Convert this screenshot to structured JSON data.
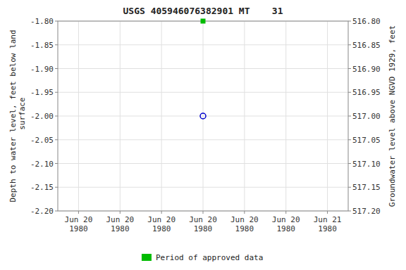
{
  "chart_data": {
    "type": "scatter",
    "title": "USGS 405946076382901 MT    31",
    "y_label": "Depth to water level, feet below land\n surface",
    "y2_label": "Groundwater level above NGVD 1929, feet",
    "categories": [
      "Jun 20\n1980",
      "Jun 20\n1980",
      "Jun 20\n1980",
      "Jun 20\n1980",
      "Jun 20\n1980",
      "Jun 20\n1980",
      "Jun 21\n1980"
    ],
    "series": [
      {
        "color": "#0000cc",
        "marker": "circle",
        "values": [
          null,
          null,
          null,
          -2.0,
          null,
          null,
          null
        ]
      },
      {
        "name": "Period of approved data",
        "color": "#00bb00",
        "marker": "square",
        "values": [
          null,
          null,
          null,
          -1.8,
          null,
          null,
          null
        ]
      }
    ],
    "ylim": [
      -2.2,
      -1.8
    ],
    "yticks": [
      {
        "value": -2.2,
        "label": "-2.20"
      },
      -2.15,
      {
        "value": -2.1,
        "label": "-2.10"
      },
      -2.05,
      {
        "value": -2.0,
        "label": "-2.00"
      },
      -1.95,
      {
        "value": -1.9,
        "label": "-1.90"
      },
      -1.85,
      {
        "value": -1.8,
        "label": "-1.80"
      }
    ],
    "y2lim": [
      517.2,
      516.8
    ],
    "y2ticks": [
      {
        "value": 516.8,
        "label": "516.80"
      },
      516.85,
      {
        "value": 516.9,
        "label": "516.90"
      },
      516.95,
      {
        "value": 517.0,
        "label": "517.00"
      },
      517.05,
      {
        "value": 517.1,
        "label": "517.10"
      },
      517.15,
      {
        "value": 517.2,
        "label": "517.20"
      }
    ],
    "grid": true,
    "legend": "bottom"
  }
}
